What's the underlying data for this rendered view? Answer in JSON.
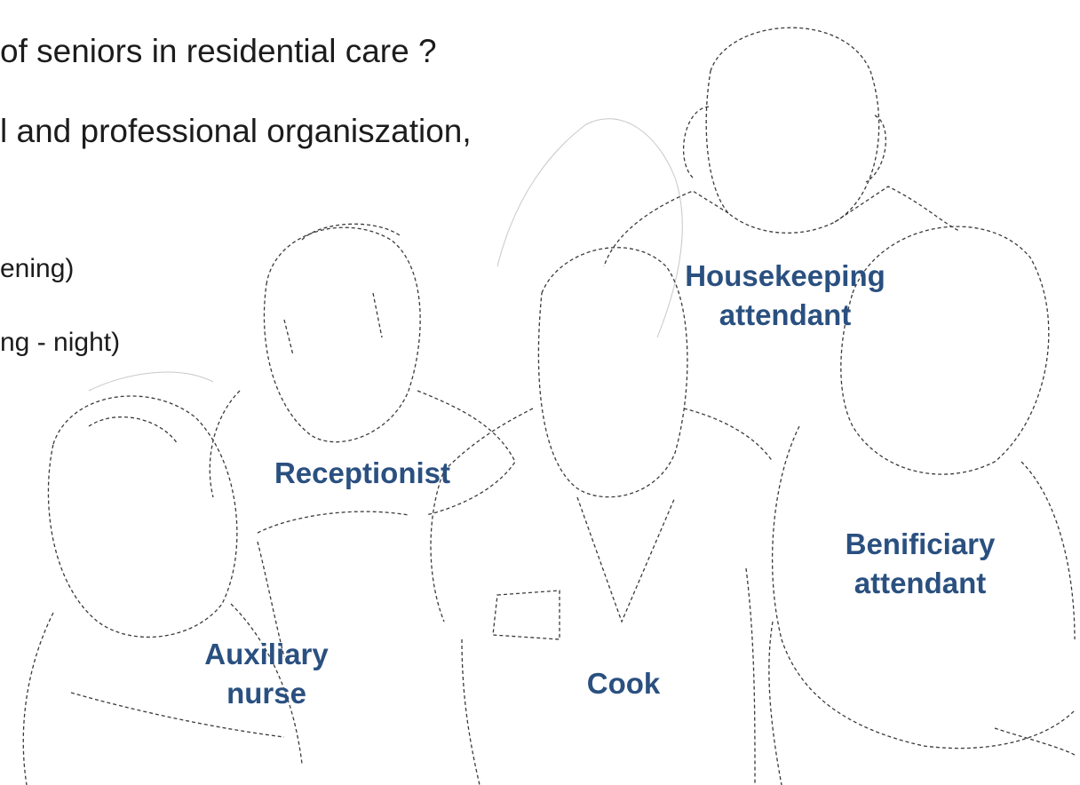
{
  "slide": {
    "text_lines": [
      "of seniors in residential care ?",
      "l and professional organiszation,",
      "ening)",
      "ng - night)"
    ],
    "labels": [
      {
        "lines": [
          "Housekeeping",
          "attendant"
        ]
      },
      {
        "lines": [
          "Receptionist"
        ]
      },
      {
        "lines": [
          "Benificiary",
          "attendant"
        ]
      },
      {
        "lines": [
          "Auxiliary",
          "nurse"
        ]
      },
      {
        "lines": [
          "Cook"
        ]
      }
    ]
  }
}
